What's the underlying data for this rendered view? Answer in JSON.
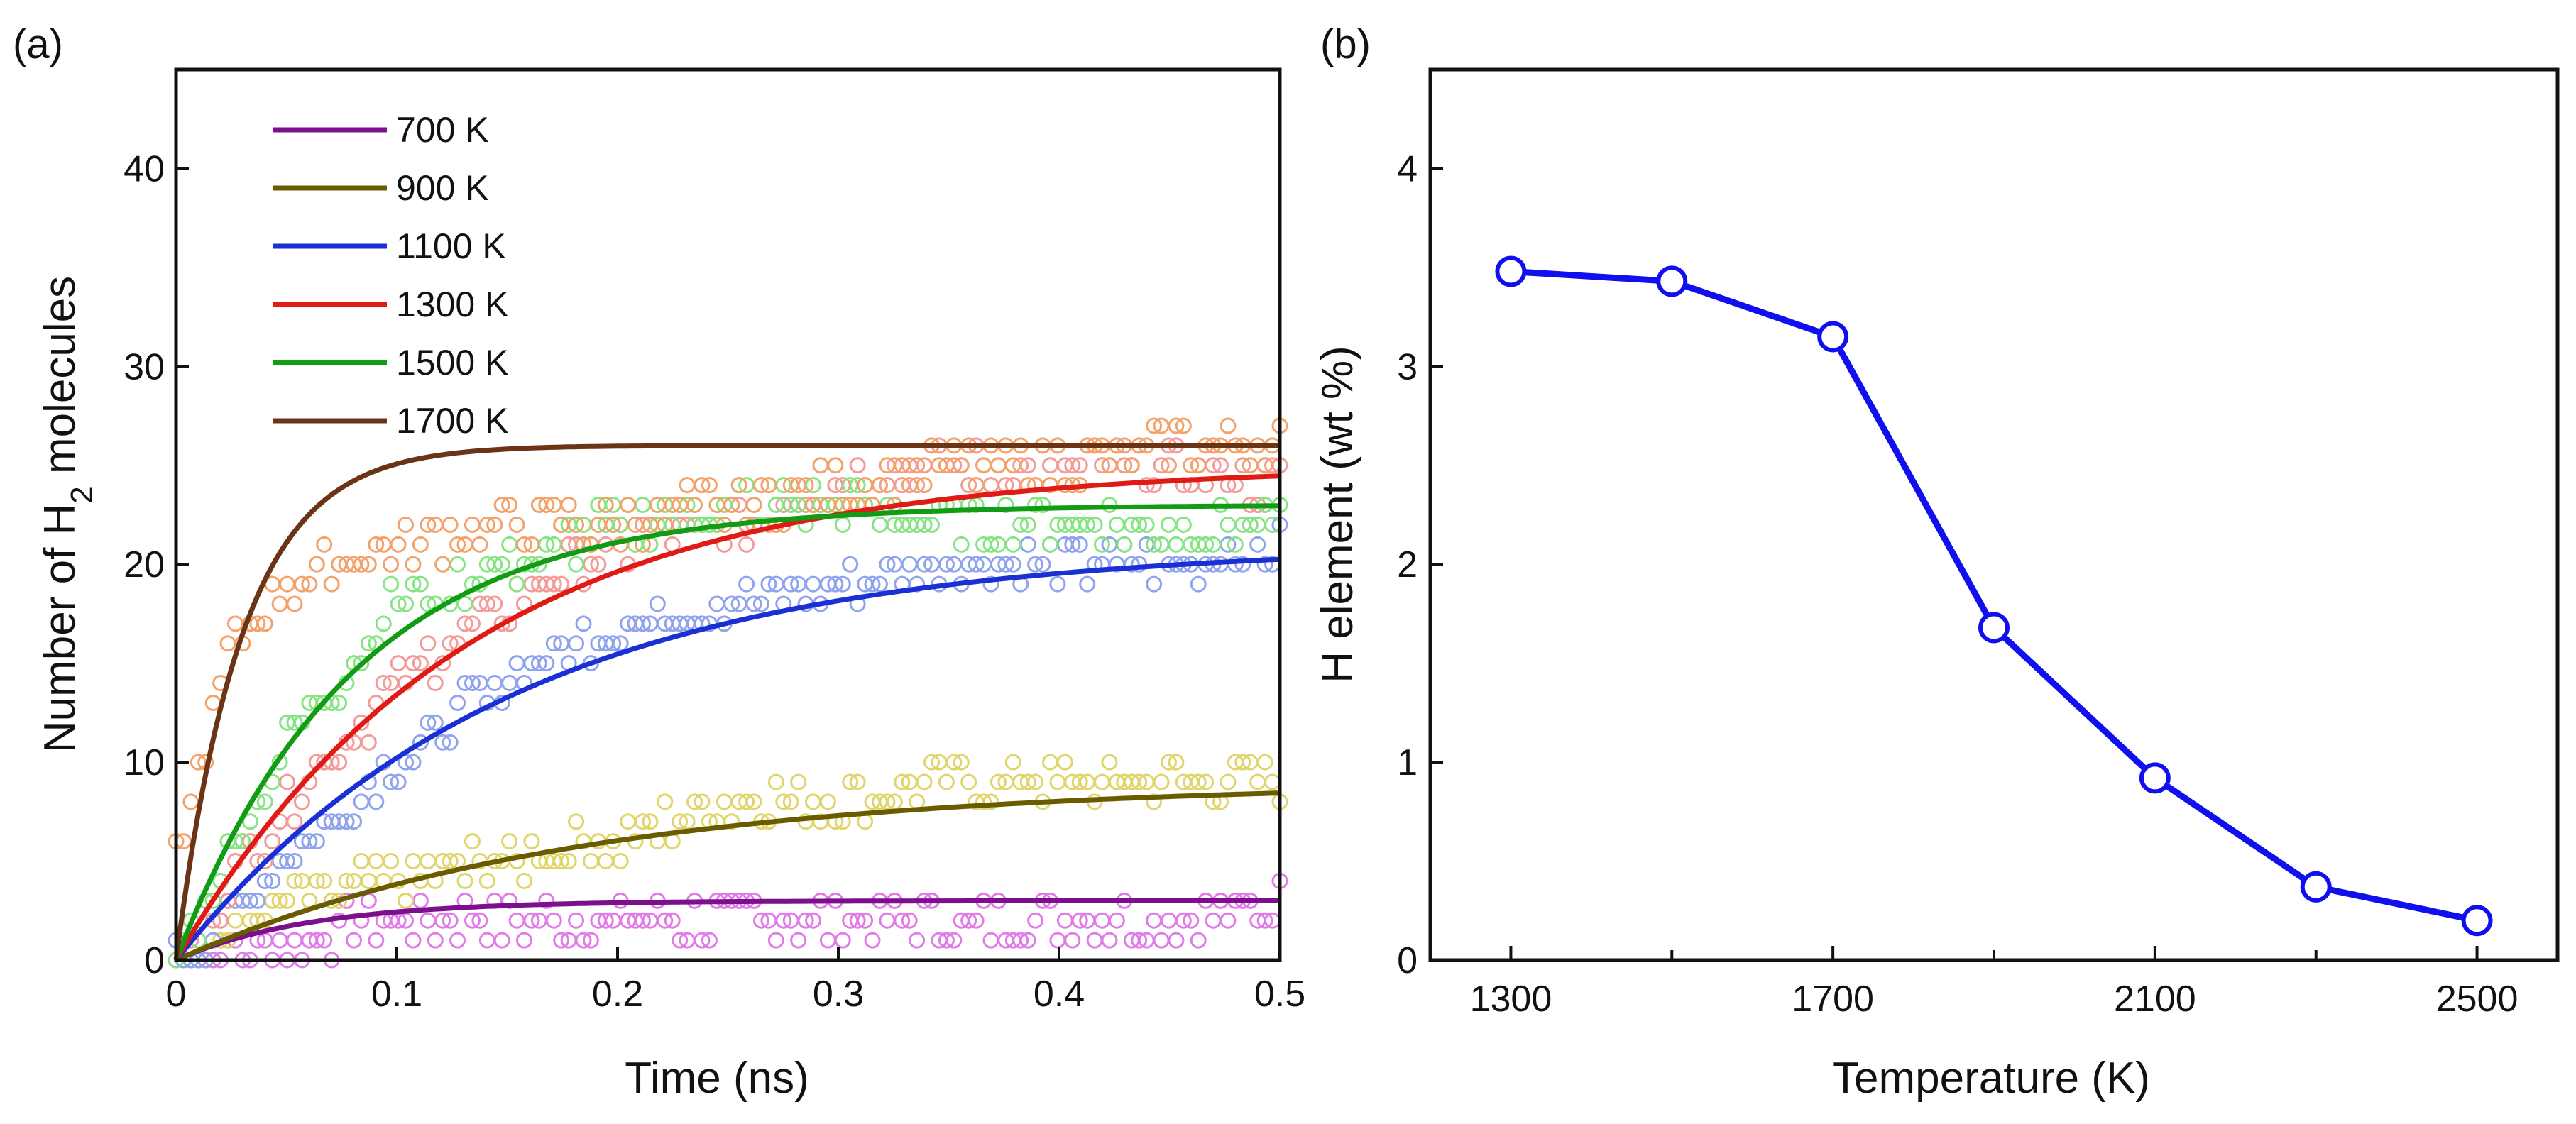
{
  "chart_data": [
    {
      "type": "line",
      "panel_label": "(a)",
      "xlabel": "Time (ns)",
      "ylabel_main": "Number of H",
      "ylabel_sub": "2",
      "ylabel_tail": " molecules",
      "xlim": [
        0,
        0.5
      ],
      "ylim": [
        0,
        45
      ],
      "xticks": [
        0,
        0.1,
        0.2,
        0.3,
        0.4,
        0.5
      ],
      "xtick_labels": [
        "0",
        "0.1",
        "0.2",
        "0.3",
        "0.4",
        "0.5"
      ],
      "yticks": [
        0,
        10,
        20,
        30,
        40
      ],
      "ytick_labels": [
        "0",
        "10",
        "20",
        "30",
        "40"
      ],
      "legend_position": "top-left",
      "series": [
        {
          "name": "700 K",
          "color": "#7b0f8c",
          "scatter_color": "#e07be8",
          "final": 3,
          "t63": 0.06,
          "raw_x": [
            0,
            0.05,
            0.1,
            0.2,
            0.3,
            0.4,
            0.47,
            0.5
          ],
          "raw_y": [
            0,
            1,
            2,
            2,
            2,
            2,
            2,
            3
          ]
        },
        {
          "name": "900 K",
          "color": "#6b5b00",
          "scatter_color": "#e0d56a",
          "final": 9,
          "t63": 0.18,
          "raw_x": [
            0,
            0.05,
            0.1,
            0.15,
            0.2,
            0.25,
            0.3,
            0.35,
            0.4,
            0.5
          ],
          "raw_y": [
            0,
            3,
            4,
            5,
            6,
            8,
            8,
            9,
            9,
            9
          ]
        },
        {
          "name": "1100 K",
          "color": "#1a2fd4",
          "scatter_color": "#8fa3ee",
          "final": 21,
          "t63": 0.15,
          "raw_x": [
            0,
            0.05,
            0.1,
            0.15,
            0.2,
            0.25,
            0.3,
            0.35,
            0.4,
            0.45,
            0.5
          ],
          "raw_y": [
            0,
            5,
            10,
            14,
            17,
            18,
            19,
            20,
            20,
            20,
            21
          ]
        },
        {
          "name": "1300 K",
          "color": "#e01a14",
          "scatter_color": "#f49a98",
          "final": 25,
          "t63": 0.13,
          "raw_x": [
            0,
            0.05,
            0.1,
            0.15,
            0.2,
            0.25,
            0.3,
            0.35,
            0.4,
            0.45,
            0.5
          ],
          "raw_y": [
            0,
            8,
            14,
            18,
            21,
            22,
            24,
            25,
            25,
            25,
            24
          ]
        },
        {
          "name": "1500 K",
          "color": "#129b14",
          "scatter_color": "#86e483",
          "final": 23,
          "t63": 0.08,
          "raw_x": [
            0,
            0.05,
            0.1,
            0.15,
            0.2,
            0.25,
            0.3,
            0.35,
            0.4,
            0.45,
            0.5
          ],
          "raw_y": [
            0,
            11,
            18,
            20,
            22,
            23,
            23,
            22,
            22,
            22,
            22
          ]
        },
        {
          "name": "1700 K",
          "color": "#6b3416",
          "scatter_color": "#f3a269",
          "final": 26,
          "t63": 0.03,
          "raw_x": [
            0,
            0.025,
            0.05,
            0.1,
            0.15,
            0.2,
            0.25,
            0.3,
            0.35,
            0.4,
            0.45,
            0.5
          ],
          "raw_y": [
            5,
            16,
            19,
            21,
            22,
            22,
            23,
            24,
            25,
            25,
            26,
            26
          ]
        }
      ]
    },
    {
      "type": "line",
      "panel_label": "(b)",
      "xlabel": "Temperature (K)",
      "ylabel": "H element (wt %)",
      "xlim": [
        1200,
        2600
      ],
      "ylim": [
        0,
        4.5
      ],
      "xticks": [
        1300,
        1700,
        2100,
        2500
      ],
      "xtick_labels": [
        "1300",
        "1700",
        "2100",
        "2500"
      ],
      "xticks_minor": [
        1500,
        1900,
        2300
      ],
      "yticks": [
        0,
        1,
        2,
        3,
        4
      ],
      "ytick_labels": [
        "0",
        "1",
        "2",
        "3",
        "4"
      ],
      "color": "#1010ee",
      "x": [
        1300,
        1500,
        1700,
        1900,
        2100,
        2300,
        2500
      ],
      "y": [
        3.48,
        3.43,
        3.15,
        1.68,
        0.92,
        0.37,
        0.2
      ]
    }
  ]
}
